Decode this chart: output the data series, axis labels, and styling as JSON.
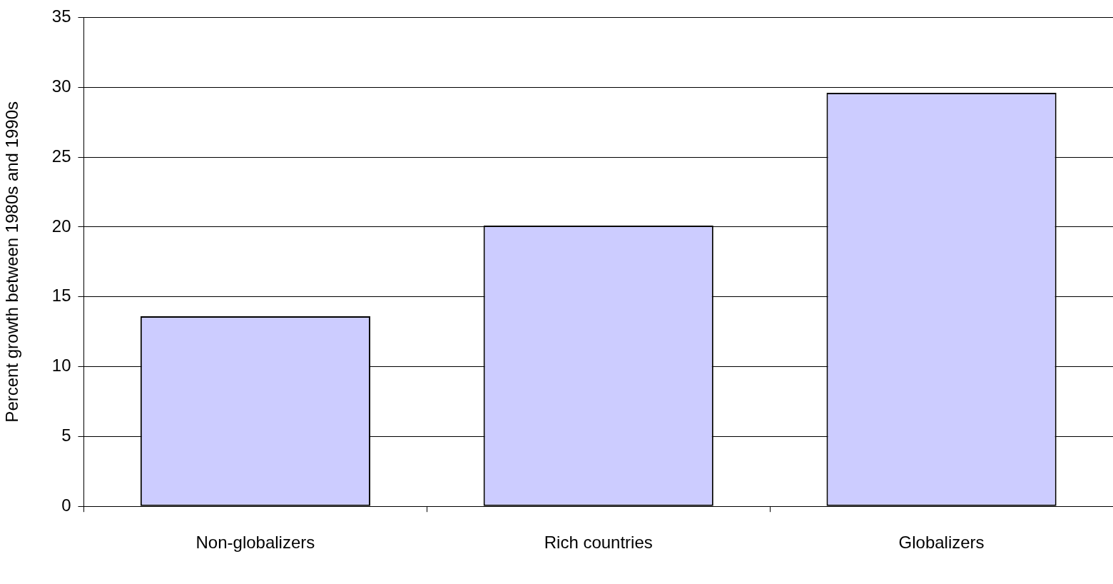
{
  "chart_data": {
    "type": "bar",
    "ylabel": "Percent growth between 1980s and 1990s",
    "categories": [
      "Non-globalizers",
      "Rich countries",
      "Globalizers"
    ],
    "values": [
      13.6,
      20.1,
      29.6
    ],
    "color": "#ccccff",
    "ylim": [
      0,
      35
    ],
    "yticks": [
      0,
      5,
      10,
      15,
      20,
      25,
      30,
      35
    ],
    "grid": "y",
    "legend": false
  }
}
